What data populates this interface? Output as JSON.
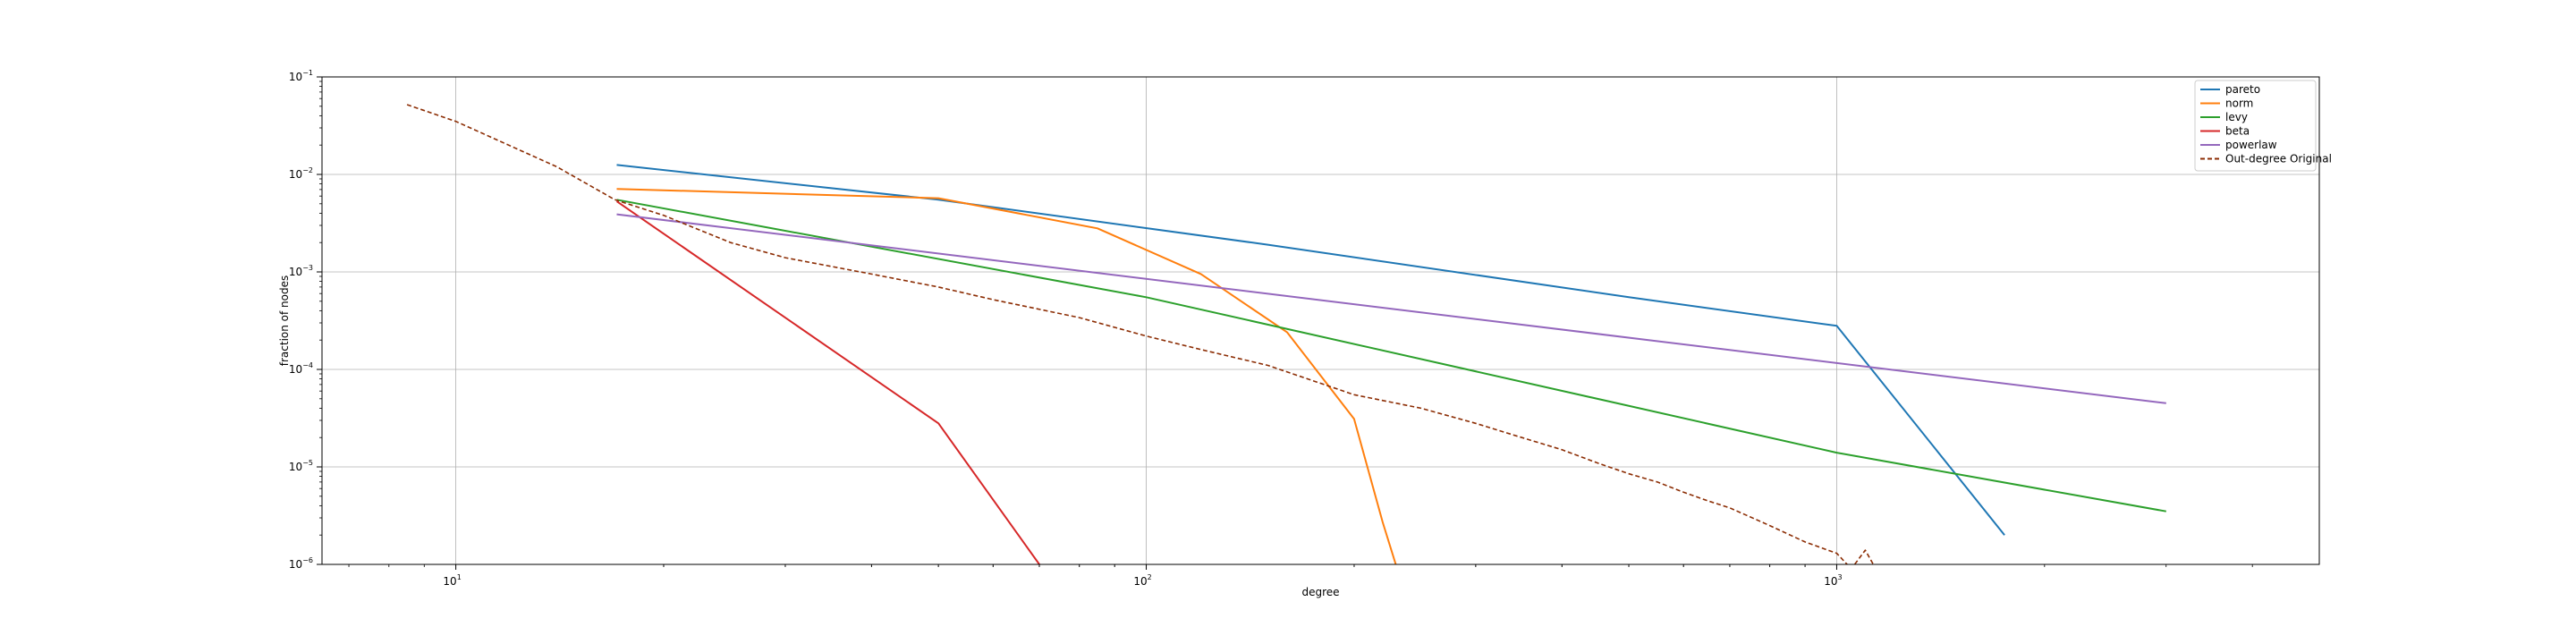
{
  "chart_data": {
    "type": "line",
    "title": "",
    "xlabel": "degree",
    "ylabel": "fraction of nodes",
    "xscale": "log",
    "yscale": "log",
    "xlim": [
      6.4,
      5000
    ],
    "ylim": [
      1e-06,
      0.1
    ],
    "grid": true,
    "legend_position": "top-right",
    "x_ticks": [
      {
        "value": 10,
        "base": "10",
        "exp": "1"
      },
      {
        "value": 100,
        "base": "10",
        "exp": "2"
      },
      {
        "value": 1000,
        "base": "10",
        "exp": "3"
      }
    ],
    "y_ticks": [
      {
        "value": 0.1,
        "base": "10",
        "exp": "−1"
      },
      {
        "value": 0.01,
        "base": "10",
        "exp": "−2"
      },
      {
        "value": 0.001,
        "base": "10",
        "exp": "−3"
      },
      {
        "value": 0.0001,
        "base": "10",
        "exp": "−4"
      },
      {
        "value": 1e-05,
        "base": "10",
        "exp": "−5"
      },
      {
        "value": 1e-06,
        "base": "10",
        "exp": "−6"
      }
    ],
    "series": [
      {
        "name": "pareto",
        "color": "#1f77b4",
        "dash": "solid",
        "x": [
          17.1,
          50,
          150,
          500,
          1000,
          1750
        ],
        "y": [
          0.0125,
          0.0055,
          0.0019,
          0.00055,
          0.00028,
          2e-06
        ]
      },
      {
        "name": "norm",
        "color": "#ff7f0e",
        "dash": "solid",
        "x": [
          17.1,
          50,
          85,
          120,
          160,
          200,
          220,
          235
        ],
        "y": [
          0.0071,
          0.0057,
          0.0028,
          0.00095,
          0.00024,
          3.1e-05,
          2.7e-06,
          6e-07
        ]
      },
      {
        "name": "levy",
        "color": "#2ca02c",
        "dash": "solid",
        "x": [
          17.1,
          100,
          1000,
          3000
        ],
        "y": [
          0.0055,
          0.00055,
          1.4e-05,
          3.5e-06
        ]
      },
      {
        "name": "beta",
        "color": "#d62728",
        "dash": "solid",
        "x": [
          17.1,
          50,
          70
        ],
        "y": [
          0.0053,
          2.8e-05,
          1e-06
        ]
      },
      {
        "name": "powerlaw",
        "color": "#9467bd",
        "dash": "solid",
        "x": [
          17.1,
          3000
        ],
        "y": [
          0.0039,
          4.5e-05
        ]
      },
      {
        "name": "Out-degree Original",
        "color": "#8c2d04",
        "dash": "dashed",
        "x": [
          8.5,
          10,
          14,
          17,
          20,
          25,
          30,
          40,
          50,
          60,
          80,
          100,
          120,
          150,
          200,
          250,
          300,
          350,
          400,
          450,
          500,
          550,
          600,
          650,
          700,
          800,
          900,
          1000,
          1050,
          1100,
          1150
        ],
        "y": [
          0.052,
          0.035,
          0.012,
          0.0055,
          0.0038,
          0.002,
          0.0014,
          0.00095,
          0.0007,
          0.00052,
          0.00034,
          0.00022,
          0.00016,
          0.00011,
          5.5e-05,
          4e-05,
          2.8e-05,
          2e-05,
          1.5e-05,
          1.1e-05,
          8.5e-06,
          7e-06,
          5.5e-06,
          4.5e-06,
          3.8e-06,
          2.5e-06,
          1.7e-06,
          1.3e-06,
          9e-07,
          1.4e-06,
          8e-07
        ]
      }
    ]
  }
}
